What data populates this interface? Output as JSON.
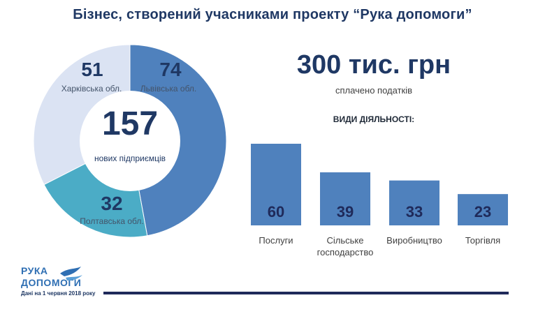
{
  "title": "Бізнес, створений учасниками проекту “Рука допомоги”",
  "donut": {
    "center_value": "157",
    "center_label": "нових підприємців",
    "segments": [
      {
        "value": "74",
        "label": "Львівська обл.",
        "color": "#4f81bd"
      },
      {
        "value": "32",
        "label": "Полтавська обл.",
        "color": "#4bacc6"
      },
      {
        "value": "51",
        "label": "Харківська обл.",
        "color": "#dbe3f3"
      }
    ]
  },
  "tax": {
    "value": "300 тис. грн",
    "label": "сплачено податків"
  },
  "chart_data": {
    "type": "bar",
    "title": "ВИДИ ДІЯЛЬНОСТІ:",
    "categories": [
      "Послуги",
      "Сільське господарство",
      "Виробництво",
      "Торгівля"
    ],
    "values": [
      60,
      39,
      33,
      23
    ],
    "color": "#4f81bd"
  },
  "logo": {
    "line1": "РУКА",
    "line2": "ДОПОМОГИ"
  },
  "footnote": "Дані на 1 червня 2018 року"
}
